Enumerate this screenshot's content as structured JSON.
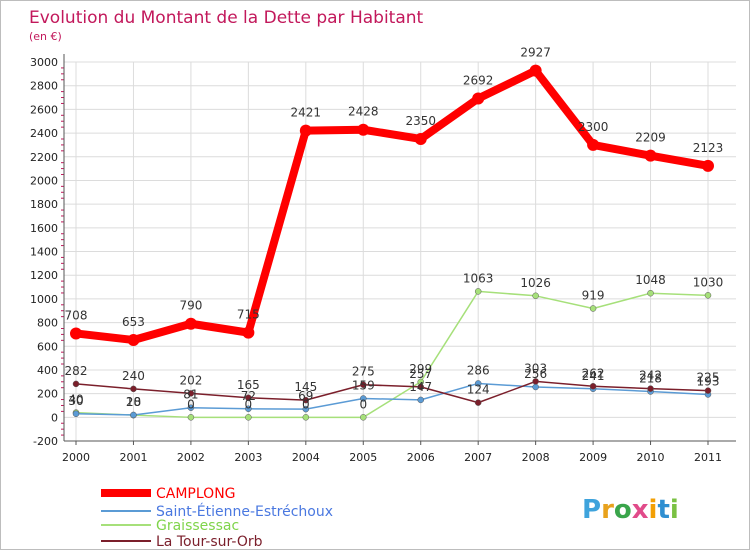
{
  "chart_data": {
    "type": "line",
    "title": "Evolution du Montant de la Dette par Habitant",
    "subtitle": "(en €)",
    "x": [
      "2000",
      "2001",
      "2002",
      "2003",
      "2004",
      "2005",
      "2006",
      "2007",
      "2008",
      "2009",
      "2010",
      "2011"
    ],
    "ylim": [
      -200,
      3000
    ],
    "yticks": [
      -200,
      0,
      200,
      400,
      600,
      800,
      1000,
      1200,
      1400,
      1600,
      1800,
      2000,
      2200,
      2400,
      2600,
      2800,
      3000
    ],
    "grid": true,
    "legend_position": "bottom-left",
    "series": [
      {
        "name": "CAMPLONG",
        "color": "#ff0000",
        "legend_color": "#ff0000",
        "values": [
          708,
          653,
          790,
          715,
          2421,
          2428,
          2350,
          2692,
          2927,
          2300,
          2209,
          2123
        ],
        "labels": [
          "708",
          "653",
          "790",
          "715",
          "2421",
          "2428",
          "2350",
          "2692",
          "2927",
          "2300",
          "2209",
          "2123"
        ]
      },
      {
        "name": "Saint-Étienne-Estréchoux",
        "color": "#5b9bd5",
        "legend_color": "#4a78e0",
        "values": [
          30,
          20,
          81,
          72,
          69,
          159,
          147,
          286,
          256,
          241,
          218,
          193
        ],
        "labels": [
          "30",
          "20",
          "81",
          "72",
          "69",
          "159",
          "147",
          "286",
          "256",
          "241",
          "218",
          "193"
        ]
      },
      {
        "name": "Graissessac",
        "color": "#a6e07a",
        "legend_color": "#7fd44a",
        "values": [
          40,
          18,
          0,
          0,
          0,
          0,
          299,
          1063,
          1026,
          919,
          1048,
          1030
        ],
        "labels": [
          "40",
          "18",
          "0",
          "0",
          "0",
          "0",
          "299",
          "1063",
          "1026",
          "919",
          "1048",
          "1030"
        ]
      },
      {
        "name": "La Tour-sur-Orb",
        "color": "#7b1f2b",
        "legend_color": "#7b1f2b",
        "values": [
          282,
          240,
          202,
          165,
          145,
          275,
          257,
          124,
          303,
          262,
          242,
          225
        ],
        "labels": [
          "282",
          "240",
          "202",
          "165",
          "145",
          "275",
          "257",
          "124",
          "303",
          "262",
          "242",
          "225"
        ]
      }
    ]
  },
  "logo": {
    "text": "Proxiti",
    "colors": [
      "#3ea3dc",
      "#e8a21d",
      "#3aa54b",
      "#e14b8a",
      "#f29f05",
      "#2f8fd1",
      "#7ac143"
    ]
  }
}
